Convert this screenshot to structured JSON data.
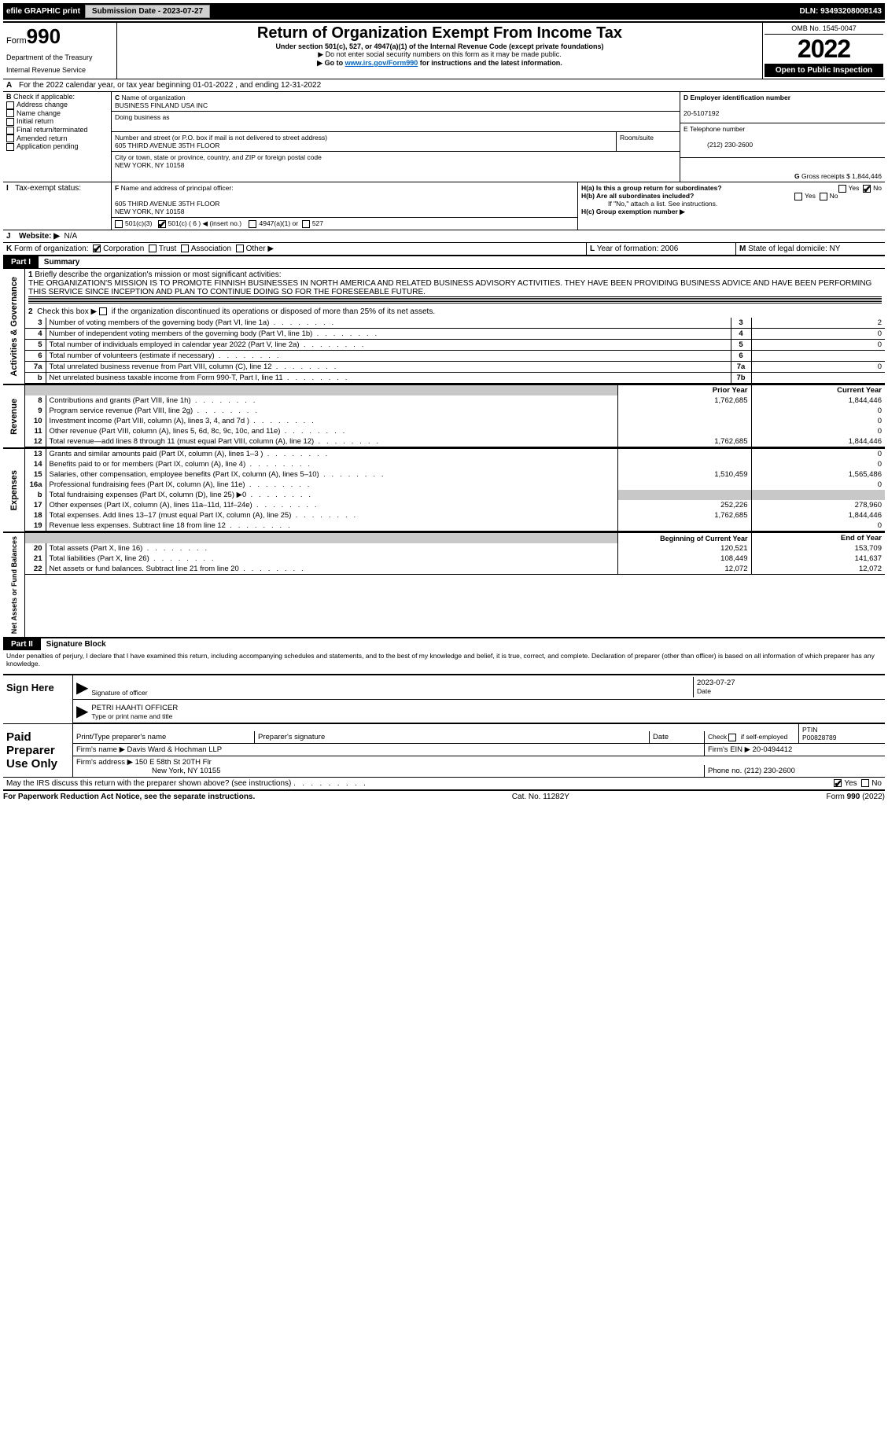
{
  "topbar": {
    "efile_label": "efile GRAPHIC print",
    "submission_label": "Submission Date - 2023-07-27",
    "dln_label": "DLN: 93493208008143"
  },
  "header": {
    "form_prefix": "Form",
    "form_number": "990",
    "title": "Return of Organization Exempt From Income Tax",
    "subtitle": "Under section 501(c), 527, or 4947(a)(1) of the Internal Revenue Code (except private foundations)",
    "warning": "▶ Do not enter social security numbers on this form as it may be made public.",
    "goto": "▶ Go to ",
    "goto_link": "www.irs.gov/Form990",
    "goto_suffix": " for instructions and the latest information.",
    "dept1": "Department of the Treasury",
    "dept2": "Internal Revenue Service",
    "omb": "OMB No. 1545-0047",
    "year": "2022",
    "inspect": "Open to Public Inspection"
  },
  "lineA": {
    "prefix": "A",
    "text": "For the 2022 calendar year, or tax year beginning 01-01-2022     , and ending 12-31-2022"
  },
  "boxB": {
    "label": "B",
    "check_label": "Check if applicable:",
    "items": [
      "Address change",
      "Name change",
      "Initial return",
      "Final return/terminated",
      "Amended return",
      "Application pending"
    ]
  },
  "boxC": {
    "label": "C",
    "name_label": "Name of organization",
    "name": "BUSINESS FINLAND USA INC",
    "dba_label": "Doing business as",
    "addr_label": "Number and street (or P.O. box if mail is not delivered to street address)",
    "room_label": "Room/suite",
    "addr": "605 THIRD AVENUE 35TH FLOOR",
    "city_label": "City or town, state or province, country, and ZIP or foreign postal code",
    "city": "NEW YORK, NY  10158"
  },
  "boxD": {
    "label": "D  Employer identification number",
    "value": "20-5107192"
  },
  "boxE": {
    "label": "E  Telephone number",
    "value": "(212) 230-2600"
  },
  "boxG": {
    "label": "G",
    "text": "Gross receipts $ 1,844,446"
  },
  "boxF": {
    "label": "F",
    "text": "Name and address of principal officer:",
    "addr1": "605 THIRD AVENUE 35TH FLOOR",
    "addr2": "NEW YORK, NY  10158"
  },
  "boxH": {
    "a": "H(a)  Is this a group return for subordinates?",
    "b": "H(b)  Are all subordinates included?",
    "b_note": "If \"No,\" attach a list. See instructions.",
    "c": "H(c)  Group exemption number ▶",
    "yes": "Yes",
    "no": "No"
  },
  "lineI": {
    "label": "I",
    "text": "Tax-exempt status:",
    "opt1": "501(c)(3)",
    "opt2": "501(c) ( 6 ) ◀ (insert no.)",
    "opt3": "4947(a)(1) or",
    "opt4": "527"
  },
  "lineJ": {
    "label": "J",
    "text": "Website: ▶",
    "value": "N/A"
  },
  "lineK": {
    "label": "K",
    "text": "Form of organization:",
    "opts": [
      "Corporation",
      "Trust",
      "Association",
      "Other ▶"
    ]
  },
  "lineL": {
    "label": "L",
    "text": "Year of formation: 2006"
  },
  "lineM": {
    "label": "M",
    "text": "State of legal domicile: NY"
  },
  "part1": {
    "hdr": "Part I",
    "title": "Summary"
  },
  "summary": {
    "q1_label": "1",
    "q1": "Briefly describe the organization's mission or most significant activities:",
    "q1_text": "THE ORGANIZATION'S MISSION IS TO PROMOTE FINNISH BUSINESSES IN NORTH AMERICA AND RELATED BUSINESS ADVISORY ACTIVITIES. THEY HAVE BEEN PROVIDING BUSINESS ADVICE AND HAVE BEEN PERFORMING THIS SERVICE SINCE INCEPTION AND PLAN TO CONTINUE DOING SO FOR THE FORESEEABLE FUTURE.",
    "q2": "Check this box ▶        if the organization discontinued its operations or disposed of more than 25% of its net assets.",
    "rows_gov": [
      {
        "n": "3",
        "t": "Number of voting members of the governing body (Part VI, line 1a)",
        "box": "3",
        "v": "2"
      },
      {
        "n": "4",
        "t": "Number of independent voting members of the governing body (Part VI, line 1b)",
        "box": "4",
        "v": "0"
      },
      {
        "n": "5",
        "t": "Total number of individuals employed in calendar year 2022 (Part V, line 2a)",
        "box": "5",
        "v": "0"
      },
      {
        "n": "6",
        "t": "Total number of volunteers (estimate if necessary)",
        "box": "6",
        "v": ""
      },
      {
        "n": "7a",
        "t": "Total unrelated business revenue from Part VIII, column (C), line 12",
        "box": "7a",
        "v": "0"
      },
      {
        "n": "b",
        "t": "Net unrelated business taxable income from Form 990-T, Part I, line 11",
        "box": "7b",
        "v": ""
      }
    ],
    "col_prior": "Prior Year",
    "col_current": "Current Year",
    "rows_rev": [
      {
        "n": "8",
        "t": "Contributions and grants (Part VIII, line 1h)",
        "p": "1,762,685",
        "c": "1,844,446"
      },
      {
        "n": "9",
        "t": "Program service revenue (Part VIII, line 2g)",
        "p": "",
        "c": "0"
      },
      {
        "n": "10",
        "t": "Investment income (Part VIII, column (A), lines 3, 4, and 7d )",
        "p": "",
        "c": "0"
      },
      {
        "n": "11",
        "t": "Other revenue (Part VIII, column (A), lines 5, 6d, 8c, 9c, 10c, and 11e)",
        "p": "",
        "c": "0"
      },
      {
        "n": "12",
        "t": "Total revenue—add lines 8 through 11 (must equal Part VIII, column (A), line 12)",
        "p": "1,762,685",
        "c": "1,844,446"
      }
    ],
    "rows_exp": [
      {
        "n": "13",
        "t": "Grants and similar amounts paid (Part IX, column (A), lines 1–3 )",
        "p": "",
        "c": "0"
      },
      {
        "n": "14",
        "t": "Benefits paid to or for members (Part IX, column (A), line 4)",
        "p": "",
        "c": "0"
      },
      {
        "n": "15",
        "t": "Salaries, other compensation, employee benefits (Part IX, column (A), lines 5–10)",
        "p": "1,510,459",
        "c": "1,565,486"
      },
      {
        "n": "16a",
        "t": "Professional fundraising fees (Part IX, column (A), line 11e)",
        "p": "",
        "c": "0"
      },
      {
        "n": "b",
        "t": "Total fundraising expenses (Part IX, column (D), line 25) ▶0",
        "p": "GRAY",
        "c": "GRAY"
      },
      {
        "n": "17",
        "t": "Other expenses (Part IX, column (A), lines 11a–11d, 11f–24e)",
        "p": "252,226",
        "c": "278,960"
      },
      {
        "n": "18",
        "t": "Total expenses. Add lines 13–17 (must equal Part IX, column (A), line 25)",
        "p": "1,762,685",
        "c": "1,844,446"
      },
      {
        "n": "19",
        "t": "Revenue less expenses. Subtract line 18 from line 12",
        "p": "",
        "c": "0"
      }
    ],
    "col_begin": "Beginning of Current Year",
    "col_end": "End of Year",
    "rows_net": [
      {
        "n": "20",
        "t": "Total assets (Part X, line 16)",
        "p": "120,521",
        "c": "153,709"
      },
      {
        "n": "21",
        "t": "Total liabilities (Part X, line 26)",
        "p": "108,449",
        "c": "141,637"
      },
      {
        "n": "22",
        "t": "Net assets or fund balances. Subtract line 21 from line 20",
        "p": "12,072",
        "c": "12,072"
      }
    ],
    "vtext_gov": "Activities & Governance",
    "vtext_rev": "Revenue",
    "vtext_exp": "Expenses",
    "vtext_net": "Net Assets or Fund Balances"
  },
  "part2": {
    "hdr": "Part II",
    "title": "Signature Block",
    "decl": "Under penalties of perjury, I declare that I have examined this return, including accompanying schedules and statements, and to the best of my knowledge and belief, it is true, correct, and complete. Declaration of preparer (other than officer) is based on all information of which preparer has any knowledge."
  },
  "sign": {
    "label": "Sign Here",
    "sig_label": "Signature of officer",
    "date_label": "Date",
    "date": "2023-07-27",
    "name": "PETRI HAAHTI  OFFICER",
    "name_label": "Type or print name and title"
  },
  "preparer": {
    "label": "Paid Preparer Use Only",
    "col1": "Print/Type preparer's name",
    "col2": "Preparer's signature",
    "col3": "Date",
    "col4_chk": "Check          if self-employed",
    "col5_l": "PTIN",
    "col5_v": "P00828789",
    "firm_name_l": "Firm's name     ▶",
    "firm_name": "Davis Ward & Hochman LLP",
    "firm_ein_l": "Firm's EIN ▶",
    "firm_ein": "20-0494412",
    "firm_addr_l": "Firm's address ▶",
    "firm_addr1": "150 E 58th St 20TH Flr",
    "firm_addr2": "New York, NY  10155",
    "phone_l": "Phone no.",
    "phone": "(212) 230-2600"
  },
  "discuss": {
    "text": "May the IRS discuss this return with the preparer shown above? (see instructions)",
    "yes": "Yes",
    "no": "No"
  },
  "footer": {
    "left": "For Paperwork Reduction Act Notice, see the separate instructions.",
    "mid": "Cat. No. 11282Y",
    "right_prefix": "Form ",
    "right_form": "990",
    "right_suffix": " (2022)"
  }
}
